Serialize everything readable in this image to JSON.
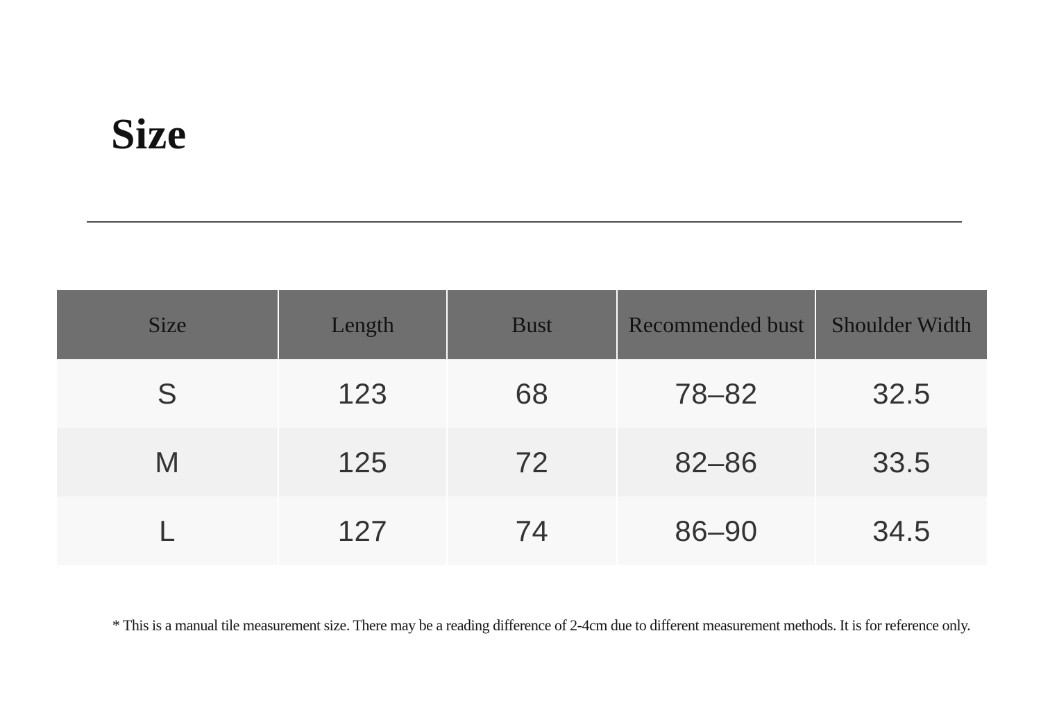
{
  "page": {
    "title": "Size",
    "footnote": "* This is a manual tile measurement size. There may be a reading difference of 2-4cm due to different measurement methods. It is for reference only."
  },
  "size_table": {
    "columns": [
      "Size",
      "Length",
      "Bust",
      "Recommended bust",
      "Shoulder Width"
    ],
    "rows": [
      [
        "S",
        "123",
        "68",
        "78–82",
        "32.5"
      ],
      [
        "M",
        "125",
        "72",
        "82–86",
        "33.5"
      ],
      [
        "L",
        "127",
        "74",
        "86–90",
        "34.5"
      ]
    ]
  },
  "colors": {
    "header_bg": "#6f6f6f",
    "header_text": "#111111",
    "row_bg_light": "#f8f8f8",
    "row_bg_dark": "#f1f1f1",
    "body_text": "#333333",
    "divider": "#4a4a4a"
  }
}
